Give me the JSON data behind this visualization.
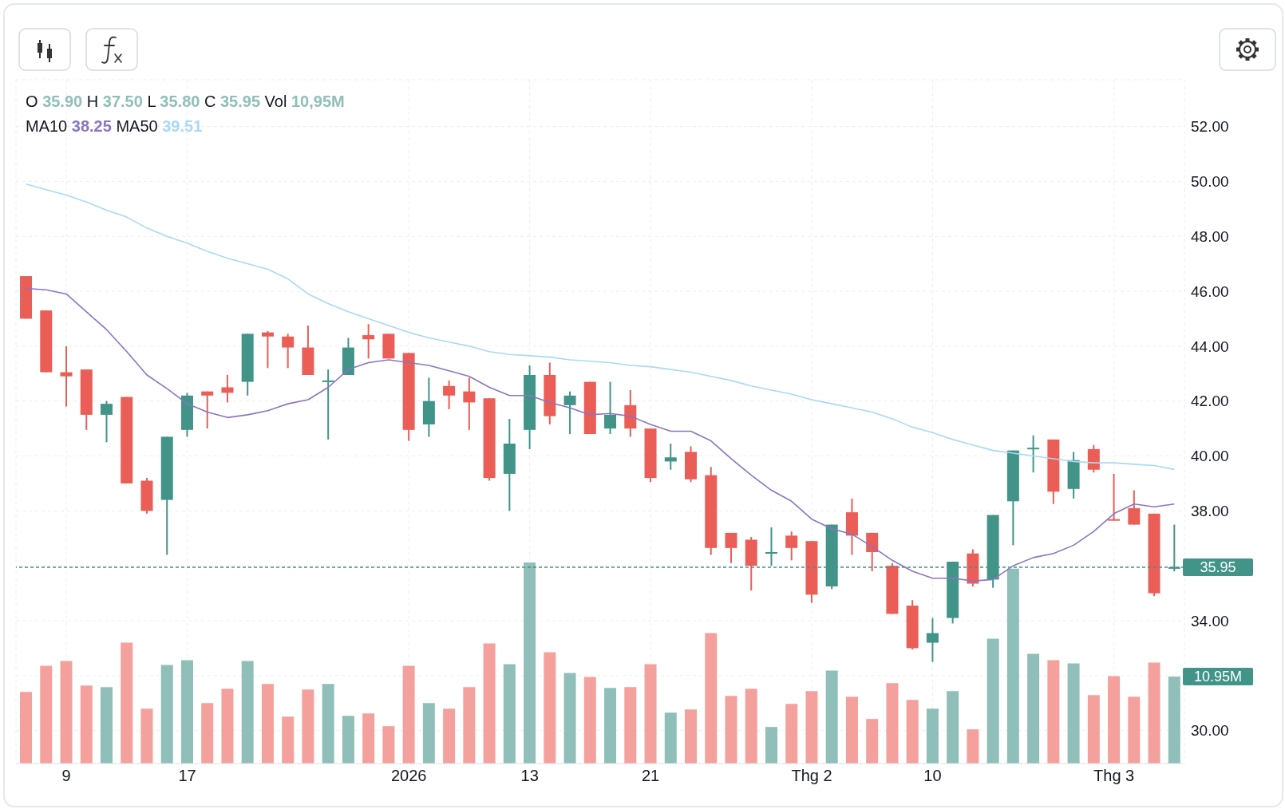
{
  "chart_data": {
    "type": "candlestick",
    "categories": [
      null,
      null,
      "9",
      null,
      null,
      null,
      null,
      null,
      "17",
      null,
      null,
      null,
      null,
      null,
      null,
      null,
      null,
      null,
      null,
      "2026",
      null,
      null,
      null,
      null,
      null,
      "13",
      null,
      null,
      null,
      null,
      null,
      "21",
      null,
      null,
      null,
      null,
      null,
      null,
      null,
      "Thg 2",
      null,
      null,
      null,
      null,
      null,
      "10",
      null,
      null,
      null,
      null,
      null,
      null,
      null,
      null,
      "Thg 3",
      null,
      null,
      null
    ],
    "ohlc": [
      [
        46.55,
        46.55,
        45.0,
        45.0
      ],
      [
        45.3,
        45.3,
        43.05,
        43.05
      ],
      [
        43.05,
        44.0,
        41.8,
        42.9
      ],
      [
        43.15,
        43.15,
        40.95,
        41.5
      ],
      [
        41.5,
        42.0,
        40.5,
        41.9
      ],
      [
        42.15,
        42.15,
        39.0,
        39.0
      ],
      [
        39.1,
        39.2,
        37.9,
        38.0
      ],
      [
        38.4,
        40.7,
        36.4,
        40.7
      ],
      [
        40.95,
        42.3,
        40.7,
        42.2
      ],
      [
        42.35,
        42.35,
        41.0,
        42.2
      ],
      [
        42.5,
        42.95,
        41.95,
        42.3
      ],
      [
        42.7,
        44.45,
        42.2,
        44.45
      ],
      [
        44.5,
        44.55,
        43.2,
        44.35
      ],
      [
        44.35,
        44.45,
        43.2,
        43.95
      ],
      [
        43.95,
        44.75,
        42.95,
        42.95
      ],
      [
        42.7,
        43.15,
        40.6,
        42.75
      ],
      [
        42.95,
        44.3,
        42.95,
        43.95
      ],
      [
        44.4,
        44.8,
        43.55,
        44.25
      ],
      [
        44.45,
        44.45,
        43.55,
        43.55
      ],
      [
        43.75,
        43.75,
        40.55,
        40.95
      ],
      [
        41.15,
        42.85,
        40.7,
        42.0
      ],
      [
        42.55,
        42.75,
        41.7,
        42.2
      ],
      [
        42.35,
        42.85,
        40.95,
        41.95
      ],
      [
        42.1,
        42.1,
        39.1,
        39.2
      ],
      [
        39.35,
        41.35,
        38.0,
        40.45
      ],
      [
        40.95,
        43.3,
        40.25,
        42.95
      ],
      [
        42.95,
        43.4,
        41.15,
        41.45
      ],
      [
        41.85,
        42.35,
        40.8,
        42.2
      ],
      [
        42.7,
        42.7,
        40.8,
        40.8
      ],
      [
        41.0,
        42.7,
        40.8,
        41.5
      ],
      [
        41.85,
        42.4,
        40.7,
        41.0
      ],
      [
        41.0,
        41.0,
        39.05,
        39.2
      ],
      [
        39.8,
        40.45,
        39.5,
        39.95
      ],
      [
        40.15,
        40.35,
        39.05,
        39.15
      ],
      [
        39.3,
        39.6,
        36.4,
        36.65
      ],
      [
        37.2,
        37.2,
        36.1,
        36.65
      ],
      [
        36.95,
        37.05,
        35.1,
        36.0
      ],
      [
        36.45,
        37.4,
        36.0,
        36.5
      ],
      [
        37.1,
        37.25,
        36.2,
        36.65
      ],
      [
        36.9,
        36.9,
        34.65,
        34.95
      ],
      [
        35.25,
        37.5,
        35.15,
        37.5
      ],
      [
        37.95,
        38.45,
        36.4,
        37.1
      ],
      [
        37.2,
        37.2,
        35.8,
        36.5
      ],
      [
        36.0,
        36.1,
        34.25,
        34.25
      ],
      [
        34.55,
        34.75,
        32.95,
        33.0
      ],
      [
        33.2,
        34.1,
        32.5,
        33.55
      ],
      [
        34.1,
        36.15,
        33.9,
        36.15
      ],
      [
        36.45,
        36.6,
        35.25,
        35.35
      ],
      [
        35.5,
        37.85,
        35.2,
        37.85
      ],
      [
        38.35,
        40.2,
        36.75,
        40.2
      ],
      [
        40.25,
        40.75,
        39.4,
        40.3
      ],
      [
        40.6,
        40.6,
        38.25,
        38.7
      ],
      [
        38.8,
        40.15,
        38.45,
        39.85
      ],
      [
        40.25,
        40.4,
        39.4,
        39.5
      ],
      [
        37.7,
        39.35,
        37.65,
        37.65
      ],
      [
        38.1,
        38.75,
        37.5,
        37.5
      ],
      [
        37.9,
        37.9,
        34.9,
        35.0
      ],
      [
        35.9,
        37.5,
        35.8,
        35.95
      ]
    ],
    "colors": [
      "#eb5d57",
      "#eb5d57",
      "#eb5d57",
      "#eb5d57",
      "#429488",
      "#eb5d57",
      "#eb5d57",
      "#429488",
      "#429488",
      "#eb5d57",
      "#eb5d57",
      "#429488",
      "#eb5d57",
      "#eb5d57",
      "#eb5d57",
      "#429488",
      "#429488",
      "#eb5d57",
      "#eb5d57",
      "#eb5d57",
      "#429488",
      "#eb5d57",
      "#eb5d57",
      "#eb5d57",
      "#429488",
      "#429488",
      "#eb5d57",
      "#429488",
      "#eb5d57",
      "#429488",
      "#eb5d57",
      "#eb5d57",
      "#429488",
      "#eb5d57",
      "#eb5d57",
      "#eb5d57",
      "#eb5d57",
      "#429488",
      "#eb5d57",
      "#eb5d57",
      "#429488",
      "#eb5d57",
      "#eb5d57",
      "#eb5d57",
      "#eb5d57",
      "#429488",
      "#429488",
      "#eb5d57",
      "#429488",
      "#429488",
      "#429488",
      "#eb5d57",
      "#429488",
      "#eb5d57",
      "#eb5d57",
      "#eb5d57",
      "#eb5d57",
      "#429488"
    ],
    "series": [
      {
        "type": "line",
        "color": "#8a75c2",
        "values": [
          46.1,
          46.05,
          45.9,
          45.25,
          44.6,
          43.8,
          42.95,
          42.45,
          41.9,
          41.6,
          41.4,
          41.5,
          41.65,
          41.9,
          42.05,
          42.5,
          43.15,
          43.4,
          43.5,
          43.4,
          43.3,
          43.1,
          42.9,
          42.5,
          42.2,
          42.2,
          41.95,
          41.75,
          41.5,
          41.55,
          41.45,
          41.15,
          40.9,
          40.9,
          40.55,
          39.9,
          39.3,
          38.75,
          38.35,
          37.7,
          37.35,
          37.15,
          36.7,
          36.2,
          35.8,
          35.55,
          35.55,
          35.45,
          35.5,
          36.0,
          36.3,
          36.45,
          36.75,
          37.25,
          37.9,
          38.25,
          38.15,
          38.25
        ]
      },
      {
        "type": "line",
        "color": "#aad8f8",
        "values": [
          49.9,
          49.7,
          49.5,
          49.25,
          48.95,
          48.7,
          48.3,
          48.0,
          47.75,
          47.45,
          47.2,
          47.0,
          46.8,
          46.45,
          45.9,
          45.55,
          45.25,
          45.0,
          44.75,
          44.5,
          44.3,
          44.15,
          44.0,
          43.8,
          43.7,
          43.65,
          43.6,
          43.5,
          43.45,
          43.4,
          43.3,
          43.25,
          43.15,
          43.05,
          42.9,
          42.75,
          42.55,
          42.4,
          42.25,
          42.05,
          41.9,
          41.75,
          41.6,
          41.35,
          41.05,
          40.85,
          40.6,
          40.4,
          40.2,
          40.1,
          40.0,
          39.9,
          39.8,
          39.75,
          39.75,
          39.7,
          39.65,
          39.51
        ]
      },
      {
        "type": "bar",
        "axis": "y2",
        "values": [
          9.0,
          12.3,
          12.9,
          9.8,
          9.6,
          15.2,
          6.9,
          12.4,
          13.0,
          7.6,
          9.4,
          12.9,
          10.0,
          5.9,
          9.3,
          10.0,
          6.0,
          6.3,
          4.7,
          12.3,
          7.6,
          6.9,
          9.6,
          15.1,
          12.5,
          25.3,
          14.0,
          11.4,
          10.9,
          9.5,
          9.6,
          12.5,
          6.4,
          6.8,
          16.4,
          8.5,
          9.4,
          4.6,
          7.5,
          9.1,
          11.7,
          8.4,
          5.6,
          10.1,
          8.0,
          6.9,
          9.1,
          4.3,
          15.7,
          24.5,
          13.8,
          13.0,
          12.6,
          8.6,
          11.0,
          8.4,
          12.7,
          10.95
        ],
        "colors": [
          "#f4a09c",
          "#f4a09c",
          "#f4a09c",
          "#f4a09c",
          "#8fbfb8",
          "#f4a09c",
          "#f4a09c",
          "#8fbfb8",
          "#8fbfb8",
          "#f4a09c",
          "#f4a09c",
          "#8fbfb8",
          "#f4a09c",
          "#f4a09c",
          "#f4a09c",
          "#8fbfb8",
          "#8fbfb8",
          "#f4a09c",
          "#f4a09c",
          "#f4a09c",
          "#8fbfb8",
          "#f4a09c",
          "#f4a09c",
          "#f4a09c",
          "#8fbfb8",
          "#8fbfb8",
          "#f4a09c",
          "#8fbfb8",
          "#f4a09c",
          "#8fbfb8",
          "#f4a09c",
          "#f4a09c",
          "#8fbfb8",
          "#f4a09c",
          "#f4a09c",
          "#f4a09c",
          "#f4a09c",
          "#8fbfb8",
          "#f4a09c",
          "#f4a09c",
          "#8fbfb8",
          "#f4a09c",
          "#f4a09c",
          "#f4a09c",
          "#f4a09c",
          "#8fbfb8",
          "#8fbfb8",
          "#f4a09c",
          "#8fbfb8",
          "#8fbfb8",
          "#8fbfb8",
          "#f4a09c",
          "#8fbfb8",
          "#f4a09c",
          "#f4a09c",
          "#f4a09c",
          "#f4a09c",
          "#8fbfb8"
        ]
      }
    ],
    "y2lim": [
      0,
      86
    ],
    "y2ticks": [
      {
        "value": 10.95,
        "label": "10.95M"
      }
    ],
    "ylim": [
      28.8,
      53.7
    ],
    "yticks": [
      {
        "value": 30,
        "label": "30.00"
      },
      {
        "value": 32,
        "label": null
      },
      {
        "value": 34,
        "label": "34.00"
      },
      {
        "value": 36,
        "label": null
      },
      {
        "value": 38,
        "label": "38.00"
      },
      {
        "value": 40,
        "label": "40.00"
      },
      {
        "value": 42,
        "label": "42.00"
      },
      {
        "value": 44,
        "label": "44.00"
      },
      {
        "value": 46,
        "label": "46.00"
      },
      {
        "value": 48,
        "label": "48.00"
      },
      {
        "value": 50,
        "label": "50.00"
      },
      {
        "value": 52,
        "label": "52.00"
      }
    ],
    "ref_lines": [
      {
        "axis": "y",
        "value": 35.95,
        "label": "35.95",
        "color": "#429488",
        "line_style": "dashed"
      }
    ],
    "annotations": [
      "O 35.90 H 37.50 L 35.80 C 35.95 Vol 10,95M",
      "MA10 38.25 MA50 39.51"
    ],
    "grid": true
  }
}
